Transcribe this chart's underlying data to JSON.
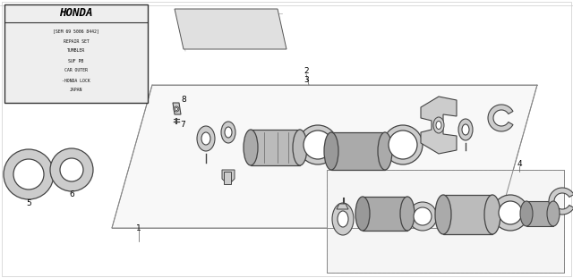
{
  "bg_color": "#ffffff",
  "gray_light": "#d8d8d8",
  "gray_mid": "#aaaaaa",
  "gray_dark": "#666666",
  "line_color": "#555555",
  "honda_box": {
    "lines": [
      "[SEM 69 5006 8442]",
      "REPAIR SET",
      "TUMBLER",
      "SUF PB",
      "CAR OUTER",
      "-HONDA LOCK",
      "JAPAN"
    ]
  }
}
